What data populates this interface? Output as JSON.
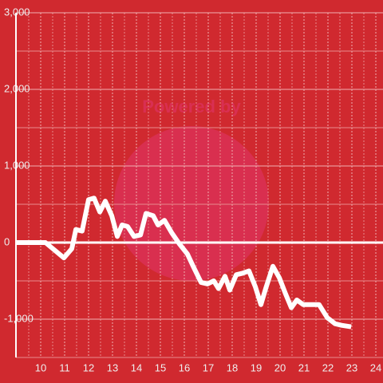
{
  "chart_data": {
    "type": "line",
    "watermark": "Powered by",
    "x": [
      8.97,
      10.2,
      10.97,
      11.3,
      11.47,
      11.73,
      12.0,
      12.23,
      12.47,
      12.7,
      12.97,
      13.2,
      13.4,
      13.63,
      13.9,
      14.17,
      14.4,
      14.7,
      14.9,
      15.17,
      15.47,
      15.8,
      16.13,
      16.37,
      16.7,
      16.97,
      17.23,
      17.43,
      17.7,
      17.9,
      18.17,
      18.43,
      18.7,
      18.97,
      19.2,
      19.4,
      19.7,
      19.97,
      20.23,
      20.47,
      20.7,
      20.97,
      21.63,
      21.97,
      22.3,
      22.57,
      22.97
    ],
    "series": [
      {
        "color": "#ffffff",
        "values": [
          0,
          0,
          -200,
          -80,
          170,
          150,
          560,
          580,
          400,
          540,
          350,
          80,
          230,
          210,
          80,
          100,
          380,
          350,
          230,
          290,
          130,
          -20,
          -150,
          -310,
          -520,
          -540,
          -500,
          -600,
          -440,
          -620,
          -420,
          -400,
          -370,
          -580,
          -810,
          -600,
          -310,
          -460,
          -670,
          -850,
          -750,
          -810,
          -810,
          -980,
          -1060,
          -1080,
          -1100
        ]
      }
    ],
    "xlim": [
      8.967,
      24.3
    ],
    "xticks": [
      10,
      11,
      12,
      13,
      14,
      15,
      16,
      17,
      18,
      19,
      20,
      21,
      22,
      23,
      24
    ],
    "x_minor_ticks": [
      9.5,
      10.5,
      11.5,
      12.5,
      13.5,
      14.5,
      15.5,
      16.5,
      17.5,
      18.5,
      19.5,
      20.5,
      21.5,
      22.5,
      23.5
    ],
    "ylim": [
      -1500,
      3000
    ],
    "yticks": [
      {
        "value": -1000,
        "label": "-1,000"
      },
      0,
      {
        "value": 1000,
        "label": "1,000"
      },
      {
        "value": 2000,
        "label": "2,000"
      },
      {
        "value": 3000,
        "label": "3,000"
      }
    ],
    "y_minor_ticks": [
      -1500,
      -500,
      500,
      1500,
      2500
    ],
    "grid": true
  }
}
